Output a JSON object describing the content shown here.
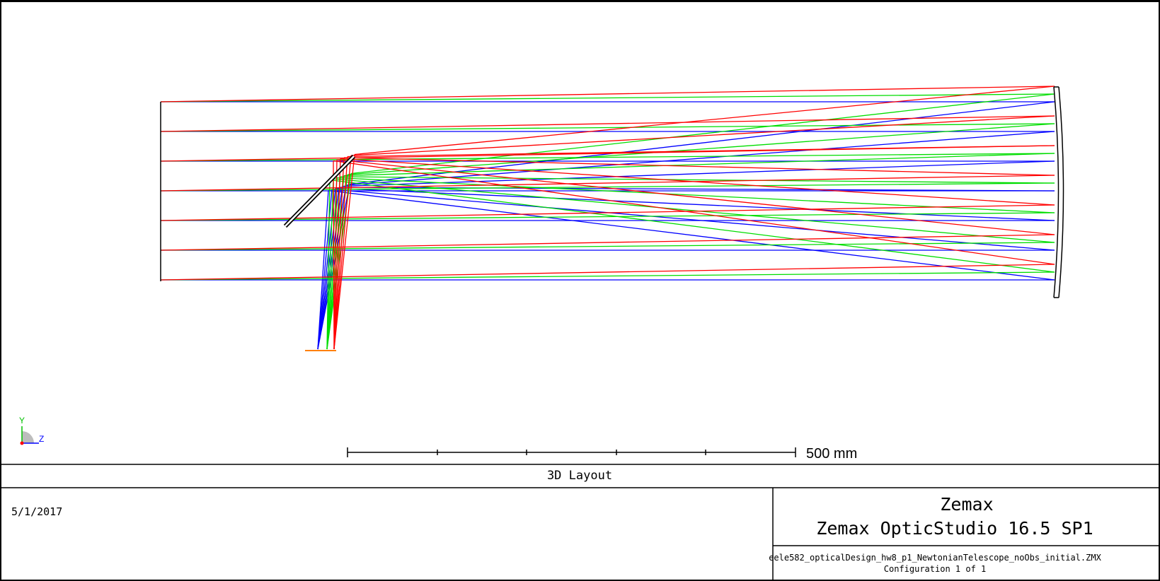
{
  "layout": {
    "title": "3D Layout",
    "scale_bar_label": "500 mm",
    "axis_y": "Y",
    "axis_z": "Z"
  },
  "footer": {
    "date": "5/1/2017",
    "company": "Zemax",
    "product": "Zemax OpticStudio 16.5 SP1",
    "filename": "eele582_opticalDesign_hw8_p1_NewtonianTelescope_noObs_initial.ZMX",
    "configuration": "Configuration 1 of 1"
  },
  "colors": {
    "field_1": "#ff0000",
    "field_2": "#00dd00",
    "field_3": "#0000ff",
    "image_plane": "#ff8000"
  }
}
